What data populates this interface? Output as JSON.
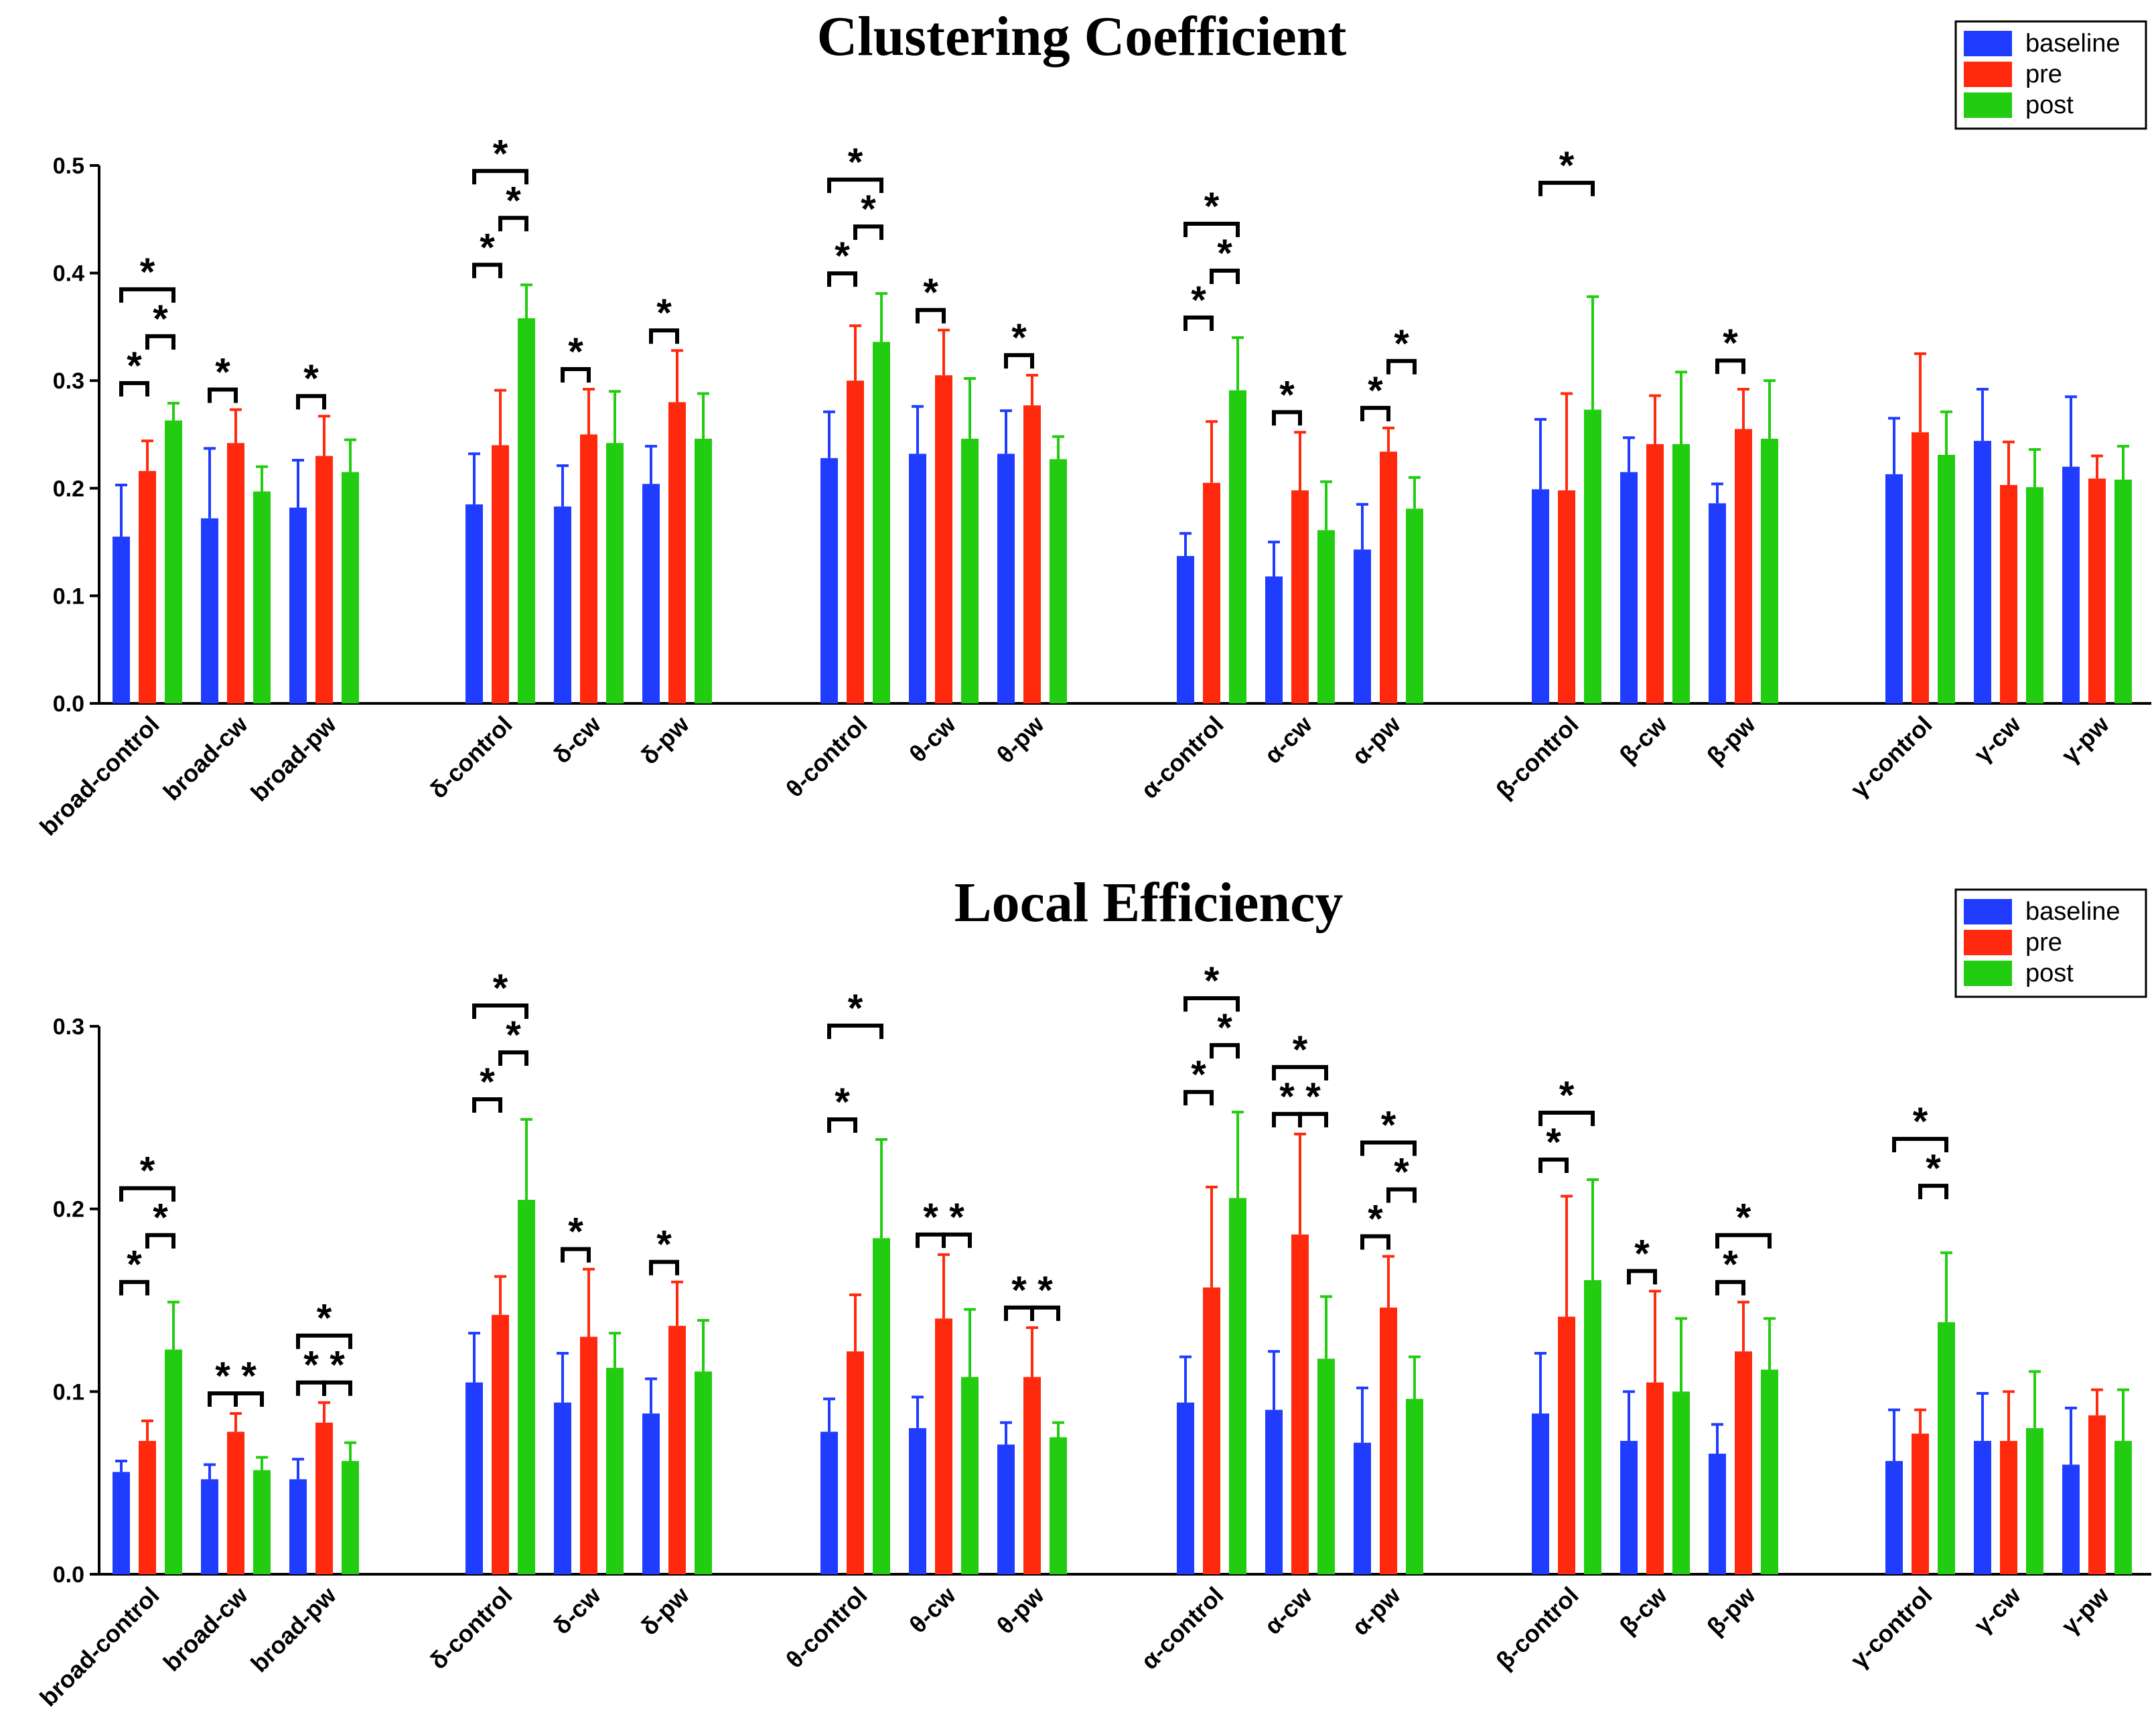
{
  "chart_data": [
    {
      "type": "bar",
      "title": "Clustering Coefficient",
      "ylim": [
        0,
        0.5
      ],
      "yticks": [
        "0.0",
        "0.1",
        "0.2",
        "0.3",
        "0.4",
        "0.5"
      ],
      "legend": {
        "position": "top-right",
        "entries": [
          "baseline",
          "pre",
          "post"
        ]
      },
      "colors": {
        "baseline": "#1f3cff",
        "pre": "#ff2a0d",
        "post": "#22cc11"
      },
      "categories": [
        "broad-control",
        "broad-cw",
        "broad-pw",
        "δ-control",
        "δ-cw",
        "δ-pw",
        "θ-control",
        "θ-cw",
        "θ-pw",
        "α-control",
        "α-cw",
        "α-pw",
        "β-control",
        "β-cw",
        "β-pw",
        "γ-control",
        "γ-cw",
        "γ-pw"
      ],
      "series": [
        {
          "name": "baseline",
          "values": [
            0.155,
            0.172,
            0.182,
            0.185,
            0.183,
            0.204,
            0.228,
            0.232,
            0.232,
            0.137,
            0.118,
            0.143,
            0.199,
            0.215,
            0.186,
            0.213,
            0.244,
            0.22
          ],
          "errors": [
            0.048,
            0.065,
            0.044,
            0.047,
            0.038,
            0.035,
            0.043,
            0.044,
            0.04,
            0.021,
            0.032,
            0.042,
            0.065,
            0.032,
            0.018,
            0.052,
            0.048,
            0.065
          ]
        },
        {
          "name": "pre",
          "values": [
            0.216,
            0.242,
            0.23,
            0.24,
            0.25,
            0.28,
            0.3,
            0.305,
            0.277,
            0.205,
            0.198,
            0.234,
            0.198,
            0.241,
            0.255,
            0.252,
            0.203,
            0.209
          ],
          "errors": [
            0.028,
            0.031,
            0.037,
            0.051,
            0.042,
            0.048,
            0.051,
            0.042,
            0.028,
            0.057,
            0.054,
            0.022,
            0.09,
            0.045,
            0.037,
            0.073,
            0.04,
            0.021
          ]
        },
        {
          "name": "post",
          "values": [
            0.263,
            0.197,
            0.215,
            0.358,
            0.242,
            0.246,
            0.336,
            0.246,
            0.227,
            0.291,
            0.161,
            0.181,
            0.273,
            0.241,
            0.246,
            0.231,
            0.201,
            0.208
          ],
          "errors": [
            0.016,
            0.023,
            0.03,
            0.031,
            0.048,
            0.042,
            0.045,
            0.056,
            0.021,
            0.049,
            0.045,
            0.029,
            0.105,
            0.067,
            0.054,
            0.04,
            0.035,
            0.031
          ]
        }
      ],
      "significance": [
        {
          "category": 0,
          "from": "baseline",
          "to": "pre",
          "level": 0
        },
        {
          "category": 0,
          "from": "pre",
          "to": "post",
          "level": 1
        },
        {
          "category": 0,
          "from": "baseline",
          "to": "post",
          "level": 2
        },
        {
          "category": 1,
          "from": "baseline",
          "to": "pre",
          "level": 0
        },
        {
          "category": 2,
          "from": "baseline",
          "to": "pre",
          "level": 0
        },
        {
          "category": 3,
          "from": "baseline",
          "to": "pre",
          "level": 0
        },
        {
          "category": 3,
          "from": "pre",
          "to": "post",
          "level": 1
        },
        {
          "category": 3,
          "from": "baseline",
          "to": "post",
          "level": 2
        },
        {
          "category": 4,
          "from": "baseline",
          "to": "pre",
          "level": 0
        },
        {
          "category": 5,
          "from": "baseline",
          "to": "pre",
          "level": 0
        },
        {
          "category": 6,
          "from": "baseline",
          "to": "pre",
          "level": 0
        },
        {
          "category": 6,
          "from": "pre",
          "to": "post",
          "level": 1
        },
        {
          "category": 6,
          "from": "baseline",
          "to": "post",
          "level": 2
        },
        {
          "category": 7,
          "from": "baseline",
          "to": "pre",
          "level": 0
        },
        {
          "category": 8,
          "from": "baseline",
          "to": "pre",
          "level": 0
        },
        {
          "category": 9,
          "from": "baseline",
          "to": "pre",
          "level": 0
        },
        {
          "category": 9,
          "from": "pre",
          "to": "post",
          "level": 1
        },
        {
          "category": 9,
          "from": "baseline",
          "to": "post",
          "level": 2
        },
        {
          "category": 10,
          "from": "baseline",
          "to": "pre",
          "level": 0
        },
        {
          "category": 11,
          "from": "baseline",
          "to": "pre",
          "level": 0
        },
        {
          "category": 11,
          "from": "pre",
          "to": "post",
          "level": 1
        },
        {
          "category": 12,
          "from": "baseline",
          "to": "post",
          "level": 2
        },
        {
          "category": 14,
          "from": "baseline",
          "to": "pre",
          "level": 0
        }
      ]
    },
    {
      "type": "bar",
      "title": "Local Efficiency",
      "ylim": [
        0,
        0.3
      ],
      "yticks": [
        "0.0",
        "0.1",
        "0.2",
        "0.3"
      ],
      "legend": {
        "position": "top-right",
        "entries": [
          "baseline",
          "pre",
          "post"
        ]
      },
      "colors": {
        "baseline": "#1f3cff",
        "pre": "#ff2a0d",
        "post": "#22cc11"
      },
      "categories": [
        "broad-control",
        "broad-cw",
        "broad-pw",
        "δ-control",
        "δ-cw",
        "δ-pw",
        "θ-control",
        "θ-cw",
        "θ-pw",
        "α-control",
        "α-cw",
        "α-pw",
        "β-control",
        "β-cw",
        "β-pw",
        "γ-control",
        "γ-cw",
        "γ-pw"
      ],
      "series": [
        {
          "name": "baseline",
          "values": [
            0.056,
            0.052,
            0.052,
            0.105,
            0.094,
            0.088,
            0.078,
            0.08,
            0.071,
            0.094,
            0.09,
            0.072,
            0.088,
            0.073,
            0.066,
            0.062,
            0.073,
            0.06
          ],
          "errors": [
            0.006,
            0.008,
            0.011,
            0.027,
            0.027,
            0.019,
            0.018,
            0.017,
            0.012,
            0.025,
            0.032,
            0.03,
            0.033,
            0.027,
            0.016,
            0.028,
            0.026,
            0.031
          ]
        },
        {
          "name": "pre",
          "values": [
            0.073,
            0.078,
            0.083,
            0.142,
            0.13,
            0.136,
            0.122,
            0.14,
            0.108,
            0.157,
            0.186,
            0.146,
            0.141,
            0.105,
            0.122,
            0.077,
            0.073,
            0.087
          ],
          "errors": [
            0.011,
            0.01,
            0.011,
            0.021,
            0.037,
            0.024,
            0.031,
            0.035,
            0.027,
            0.055,
            0.055,
            0.028,
            0.066,
            0.05,
            0.027,
            0.013,
            0.027,
            0.014
          ]
        },
        {
          "name": "post",
          "values": [
            0.123,
            0.057,
            0.062,
            0.205,
            0.113,
            0.111,
            0.184,
            0.108,
            0.075,
            0.206,
            0.118,
            0.096,
            0.161,
            0.1,
            0.112,
            0.138,
            0.08,
            0.073
          ],
          "errors": [
            0.026,
            0.007,
            0.01,
            0.044,
            0.019,
            0.028,
            0.054,
            0.037,
            0.008,
            0.047,
            0.034,
            0.023,
            0.055,
            0.04,
            0.028,
            0.038,
            0.031,
            0.028
          ]
        }
      ],
      "significance": [
        {
          "category": 0,
          "from": "baseline",
          "to": "pre",
          "level": 0
        },
        {
          "category": 0,
          "from": "pre",
          "to": "post",
          "level": 1
        },
        {
          "category": 0,
          "from": "baseline",
          "to": "post",
          "level": 2
        },
        {
          "category": 1,
          "from": "baseline",
          "to": "pre",
          "level": 0
        },
        {
          "category": 1,
          "from": "pre",
          "to": "post",
          "level": 0
        },
        {
          "category": 2,
          "from": "baseline",
          "to": "pre",
          "level": 0
        },
        {
          "category": 2,
          "from": "pre",
          "to": "post",
          "level": 0
        },
        {
          "category": 2,
          "from": "baseline",
          "to": "post",
          "level": 1
        },
        {
          "category": 3,
          "from": "baseline",
          "to": "pre",
          "level": 0
        },
        {
          "category": 3,
          "from": "pre",
          "to": "post",
          "level": 1
        },
        {
          "category": 3,
          "from": "baseline",
          "to": "post",
          "level": 2
        },
        {
          "category": 4,
          "from": "baseline",
          "to": "pre",
          "level": 0
        },
        {
          "category": 5,
          "from": "baseline",
          "to": "pre",
          "level": 0
        },
        {
          "category": 6,
          "from": "baseline",
          "to": "pre",
          "level": 0
        },
        {
          "category": 6,
          "from": "baseline",
          "to": "post",
          "level": 2
        },
        {
          "category": 7,
          "from": "baseline",
          "to": "pre",
          "level": 0
        },
        {
          "category": 7,
          "from": "pre",
          "to": "post",
          "level": 0
        },
        {
          "category": 8,
          "from": "baseline",
          "to": "pre",
          "level": 0
        },
        {
          "category": 8,
          "from": "pre",
          "to": "post",
          "level": 0
        },
        {
          "category": 9,
          "from": "baseline",
          "to": "pre",
          "level": 0
        },
        {
          "category": 9,
          "from": "pre",
          "to": "post",
          "level": 1
        },
        {
          "category": 9,
          "from": "baseline",
          "to": "post",
          "level": 2
        },
        {
          "category": 10,
          "from": "baseline",
          "to": "pre",
          "level": 0
        },
        {
          "category": 10,
          "from": "pre",
          "to": "post",
          "level": 0
        },
        {
          "category": 10,
          "from": "baseline",
          "to": "post",
          "level": 1
        },
        {
          "category": 11,
          "from": "baseline",
          "to": "pre",
          "level": 0
        },
        {
          "category": 11,
          "from": "pre",
          "to": "post",
          "level": 1
        },
        {
          "category": 11,
          "from": "baseline",
          "to": "post",
          "level": 2
        },
        {
          "category": 12,
          "from": "baseline",
          "to": "pre",
          "level": 0
        },
        {
          "category": 12,
          "from": "baseline",
          "to": "post",
          "level": 1
        },
        {
          "category": 13,
          "from": "baseline",
          "to": "pre",
          "level": 0
        },
        {
          "category": 14,
          "from": "baseline",
          "to": "pre",
          "level": 0
        },
        {
          "category": 14,
          "from": "baseline",
          "to": "post",
          "level": 1
        },
        {
          "category": 15,
          "from": "pre",
          "to": "post",
          "level": 1
        },
        {
          "category": 15,
          "from": "baseline",
          "to": "post",
          "level": 2
        }
      ]
    }
  ]
}
